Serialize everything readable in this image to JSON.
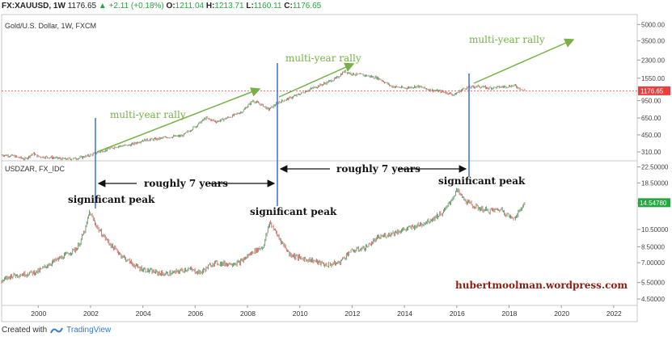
{
  "header": {
    "symbol": "FX:XAUUSD, 1W",
    "last": "1176.65",
    "change": "+2.11 (+0.18%)",
    "open_label": "O:",
    "open": "1211.04",
    "high_label": "H:",
    "high": "1213.71",
    "low_label": "L:",
    "low": "1160.11",
    "close_label": "C:",
    "close": "1176.65"
  },
  "footer": {
    "created_with": "Created with",
    "brand": "TradingView"
  },
  "colors": {
    "candle_up": "#3a7a3a",
    "candle_down": "#b84a3a",
    "arrow_green": "#76b046",
    "peak_line": "#3a6fd4",
    "price_label": "#e84040",
    "last_label_zar": "#26a640"
  },
  "chart_data": [
    {
      "type": "line",
      "title": "Gold/U.S. Dollar, 1W, FXCM",
      "y_scale": "log",
      "ylim": [
        260,
        6000
      ],
      "y_ticks": [
        "5000.00",
        "3500.00",
        "2300.00",
        "1550.00",
        "950.00",
        "650.00",
        "450.00",
        "310.00"
      ],
      "y_tick_values": [
        5000,
        3500,
        2300,
        1550,
        950,
        650,
        450,
        310
      ],
      "last_value_label": "1176.65",
      "last_value": 1176.65,
      "x": [
        1998.6,
        1999.0,
        1999.5,
        1999.8,
        2000.0,
        2000.5,
        2001.0,
        2001.5,
        2001.9,
        2002.5,
        2003.0,
        2003.5,
        2004.0,
        2004.5,
        2005.0,
        2005.5,
        2006.0,
        2006.4,
        2006.8,
        2007.3,
        2007.8,
        2008.2,
        2008.6,
        2008.8,
        2009.2,
        2009.6,
        2010.0,
        2010.5,
        2011.0,
        2011.4,
        2011.7,
        2012.0,
        2012.5,
        2013.0,
        2013.5,
        2014.0,
        2014.5,
        2015.0,
        2015.5,
        2015.9,
        2016.3,
        2016.8,
        2017.2,
        2017.7,
        2018.2,
        2018.6
      ],
      "values": [
        290,
        285,
        265,
        300,
        280,
        275,
        265,
        270,
        285,
        320,
        350,
        360,
        400,
        410,
        430,
        440,
        540,
        650,
        600,
        660,
        750,
        950,
        850,
        780,
        920,
        1000,
        1100,
        1250,
        1400,
        1550,
        1800,
        1700,
        1650,
        1550,
        1300,
        1250,
        1300,
        1200,
        1150,
        1080,
        1250,
        1300,
        1250,
        1280,
        1320,
        1176.65
      ],
      "annotations": [
        {
          "text": "multi-year rally"
        },
        {
          "text": "multi-year rally"
        },
        {
          "text": "multi-year rally"
        }
      ]
    },
    {
      "type": "line",
      "title": "USDZAR, FX_IDC",
      "y_scale": "log",
      "ylim": [
        4.2,
        24
      ],
      "y_ticks": [
        "22.50000",
        "18.50000",
        "14.50000",
        "10.50000",
        "8.50000",
        "7.00000",
        "5.50000",
        "4.50000"
      ],
      "y_tick_values": [
        22.5,
        18.5,
        14.5,
        10.5,
        8.5,
        7.0,
        5.5,
        4.5
      ],
      "last_value_label": "14.54780",
      "last_value": 14.5478,
      "x": [
        1998.6,
        1999.0,
        1999.5,
        2000.0,
        2000.5,
        2001.0,
        2001.5,
        2001.8,
        2001.95,
        2002.3,
        2002.8,
        2003.3,
        2003.8,
        2004.3,
        2004.8,
        2005.2,
        2005.7,
        2006.2,
        2006.7,
        2007.2,
        2007.7,
        2008.2,
        2008.6,
        2008.85,
        2009.2,
        2009.6,
        2010.0,
        2010.5,
        2011.0,
        2011.5,
        2011.9,
        2012.5,
        2013.0,
        2013.5,
        2014.0,
        2014.5,
        2015.0,
        2015.5,
        2015.85,
        2016.0,
        2016.3,
        2016.7,
        2017.2,
        2017.7,
        2018.1,
        2018.3,
        2018.6
      ],
      "values": [
        5.6,
        6.0,
        6.1,
        6.3,
        7.0,
        7.6,
        8.4,
        10.5,
        13.0,
        10.5,
        8.6,
        7.4,
        6.6,
        6.3,
        6.1,
        6.2,
        6.5,
        6.2,
        7.0,
        6.9,
        7.0,
        8.0,
        8.5,
        11.5,
        9.5,
        7.8,
        7.4,
        7.2,
        6.8,
        7.0,
        8.0,
        8.4,
        9.5,
        10.0,
        10.5,
        11.0,
        11.8,
        13.0,
        15.5,
        17.0,
        15.0,
        13.8,
        13.2,
        13.4,
        12.0,
        12.5,
        14.5478
      ],
      "annotations": [
        {
          "text": "significant peak"
        },
        {
          "text": "significant peak"
        },
        {
          "text": "significant peak"
        },
        {
          "text": "roughly 7 years"
        },
        {
          "text": "roughly 7 years"
        },
        {
          "text": "hubertmoolman.wordpress.com"
        }
      ]
    }
  ],
  "x_axis": {
    "ticks": [
      "2000",
      "2002",
      "2004",
      "2006",
      "2008",
      "2010",
      "2012",
      "2014",
      "2016",
      "2018",
      "2020",
      "2022"
    ],
    "tick_values": [
      2000,
      2002,
      2004,
      2006,
      2008,
      2010,
      2012,
      2014,
      2016,
      2018,
      2020,
      2022
    ]
  }
}
